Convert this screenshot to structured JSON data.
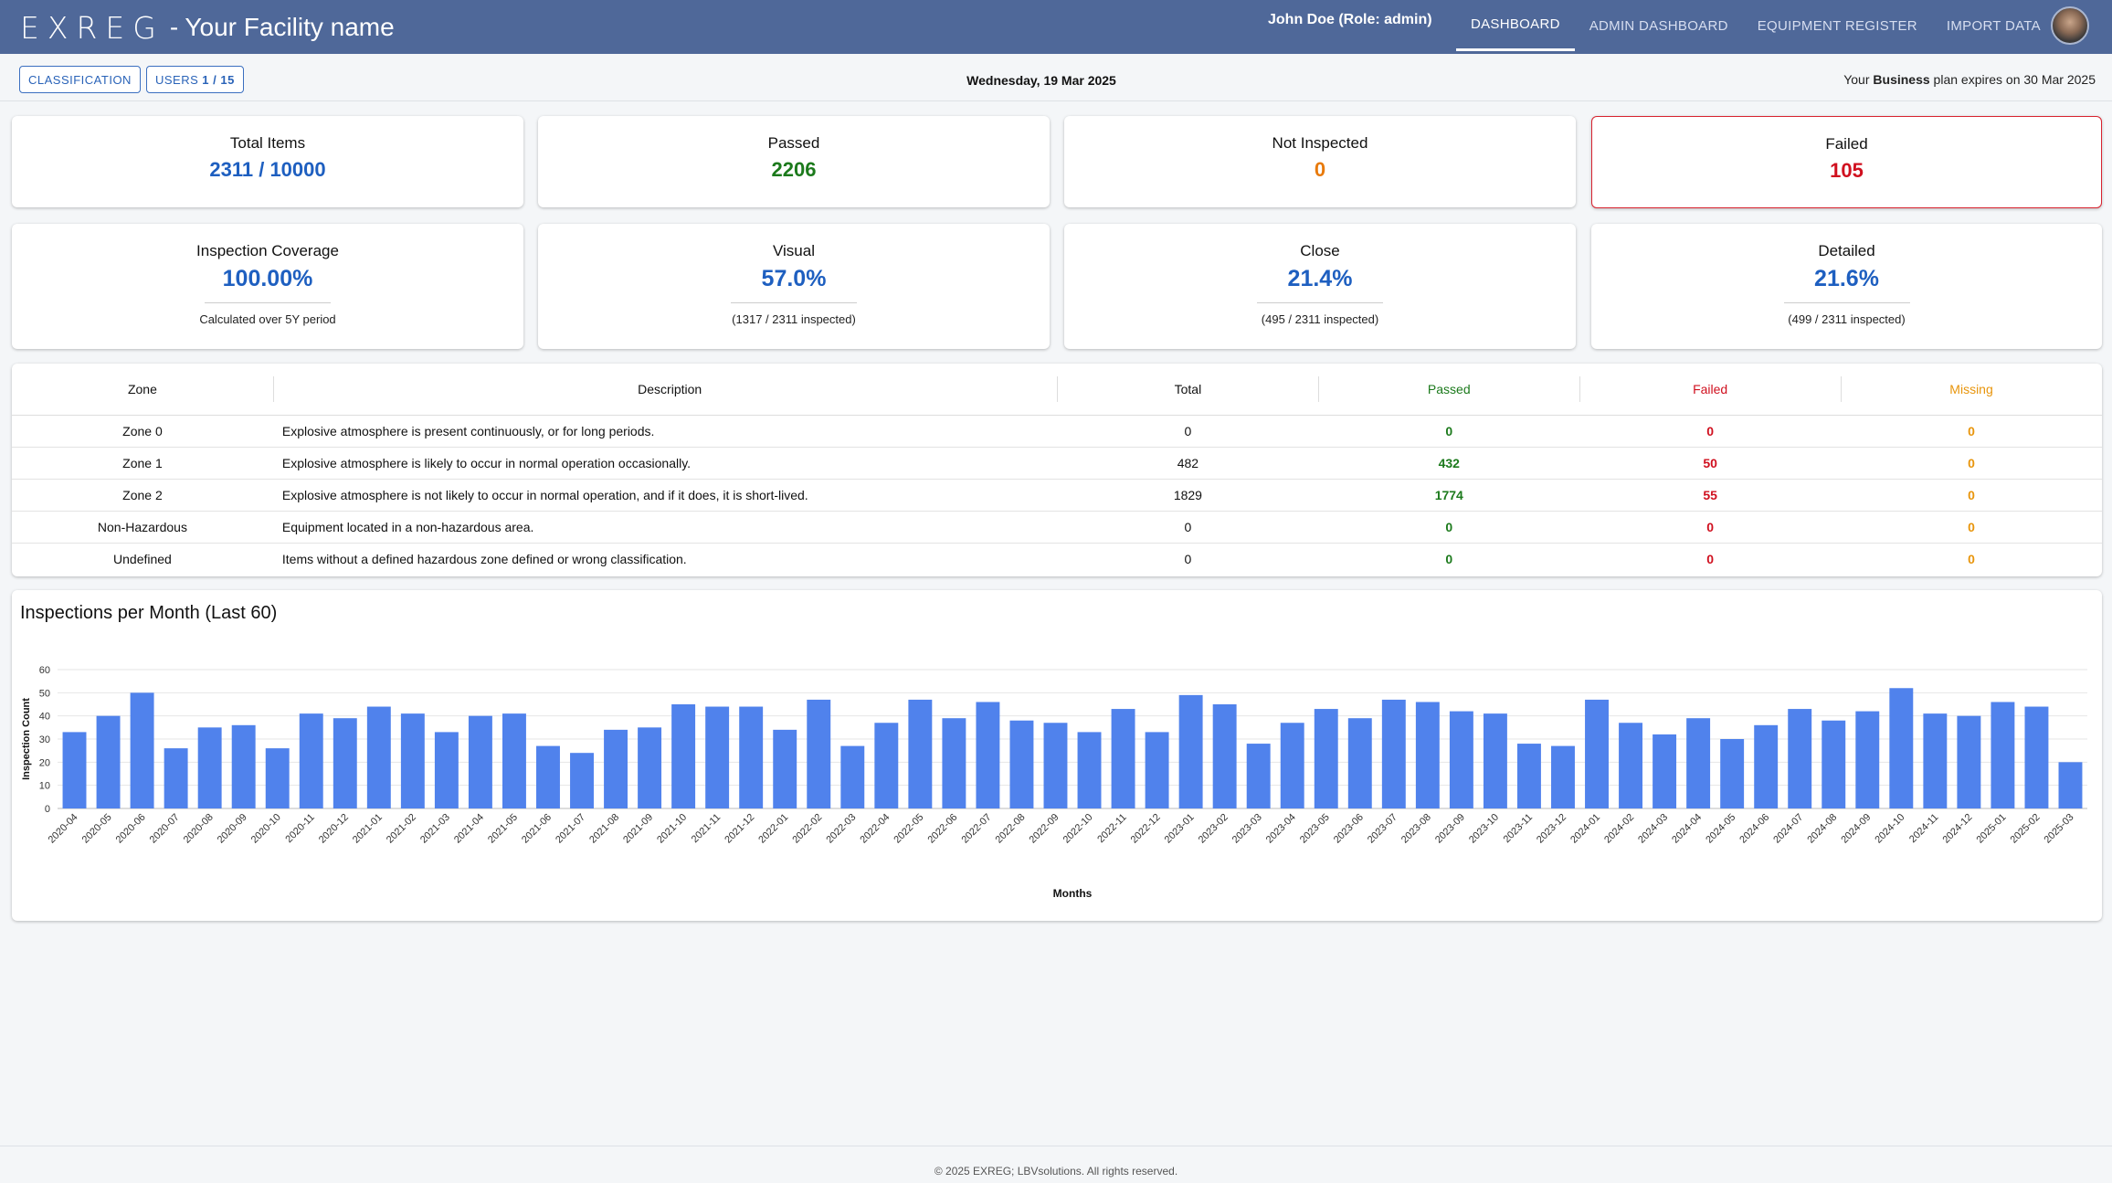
{
  "header": {
    "logo": "EXREG",
    "facility": "- Your Facility name",
    "user": "John Doe (Role: admin)",
    "nav": [
      {
        "label": "DASHBOARD",
        "active": true
      },
      {
        "label": "ADMIN DASHBOARD",
        "active": false
      },
      {
        "label": "EQUIPMENT REGISTER",
        "active": false
      },
      {
        "label": "IMPORT DATA",
        "active": false
      }
    ]
  },
  "subbar": {
    "classification_label": "CLASSIFICATION",
    "users_label": "USERS",
    "users_count": "1 / 15",
    "date": "Wednesday, 19 Mar 2025",
    "plan_prefix": "Your",
    "plan_name": "Business",
    "plan_suffix": "plan expires on 30 Mar 2025"
  },
  "stats": {
    "total": {
      "title": "Total Items",
      "value": "2311 / 10000"
    },
    "passed": {
      "title": "Passed",
      "value": "2206"
    },
    "not_inspected": {
      "title": "Not Inspected",
      "value": "0"
    },
    "failed": {
      "title": "Failed",
      "value": "105"
    }
  },
  "coverage": {
    "coverage": {
      "title": "Inspection Coverage",
      "value": "100.00%",
      "sub": "Calculated over 5Y period"
    },
    "visual": {
      "title": "Visual",
      "value": "57.0%",
      "sub": "(1317 / 2311 inspected)"
    },
    "close": {
      "title": "Close",
      "value": "21.4%",
      "sub": "(495 / 2311 inspected)"
    },
    "detailed": {
      "title": "Detailed",
      "value": "21.6%",
      "sub": "(499 / 2311 inspected)"
    }
  },
  "zones": {
    "headers": {
      "zone": "Zone",
      "description": "Description",
      "total": "Total",
      "passed": "Passed",
      "failed": "Failed",
      "missing": "Missing"
    },
    "rows": [
      {
        "zone": "Zone 0",
        "description": "Explosive atmosphere is present continuously, or for long periods.",
        "total": "0",
        "passed": "0",
        "failed": "0",
        "missing": "0"
      },
      {
        "zone": "Zone 1",
        "description": "Explosive atmosphere is likely to occur in normal operation occasionally.",
        "total": "482",
        "passed": "432",
        "failed": "50",
        "missing": "0"
      },
      {
        "zone": "Zone 2",
        "description": "Explosive atmosphere is not likely to occur in normal operation, and if it does, it is short-lived.",
        "total": "1829",
        "passed": "1774",
        "failed": "55",
        "missing": "0"
      },
      {
        "zone": "Non-Hazardous",
        "description": "Equipment located in a non-hazardous area.",
        "total": "0",
        "passed": "0",
        "failed": "0",
        "missing": "0"
      },
      {
        "zone": "Undefined",
        "description": "Items without a defined hazardous zone defined or wrong classification.",
        "total": "0",
        "passed": "0",
        "failed": "0",
        "missing": "0"
      }
    ]
  },
  "chart_data": {
    "type": "bar",
    "title": "Inspections per Month (Last 60)",
    "xlabel": "Months",
    "ylabel": "Inspection Count",
    "ylim": [
      0,
      60
    ],
    "yticks": [
      0,
      10,
      20,
      30,
      40,
      50,
      60
    ],
    "grid": true,
    "bar_color": "#5082ec",
    "categories": [
      "2020-04",
      "2020-05",
      "2020-06",
      "2020-07",
      "2020-08",
      "2020-09",
      "2020-10",
      "2020-11",
      "2020-12",
      "2021-01",
      "2021-02",
      "2021-03",
      "2021-04",
      "2021-05",
      "2021-06",
      "2021-07",
      "2021-08",
      "2021-09",
      "2021-10",
      "2021-11",
      "2021-12",
      "2022-01",
      "2022-02",
      "2022-03",
      "2022-04",
      "2022-05",
      "2022-06",
      "2022-07",
      "2022-08",
      "2022-09",
      "2022-10",
      "2022-11",
      "2022-12",
      "2023-01",
      "2023-02",
      "2023-03",
      "2023-04",
      "2023-05",
      "2023-06",
      "2023-07",
      "2023-08",
      "2023-09",
      "2023-10",
      "2023-11",
      "2023-12",
      "2024-01",
      "2024-02",
      "2024-03",
      "2024-04",
      "2024-05",
      "2024-06",
      "2024-07",
      "2024-08",
      "2024-09",
      "2024-10",
      "2024-11",
      "2024-12",
      "2025-01",
      "2025-02",
      "2025-03"
    ],
    "values": [
      33,
      40,
      50,
      26,
      35,
      36,
      26,
      41,
      39,
      44,
      41,
      33,
      40,
      41,
      27,
      24,
      34,
      35,
      45,
      44,
      44,
      34,
      47,
      27,
      37,
      47,
      39,
      46,
      38,
      37,
      33,
      43,
      33,
      49,
      45,
      28,
      37,
      43,
      39,
      47,
      46,
      42,
      41,
      28,
      27,
      47,
      37,
      32,
      39,
      30,
      36,
      43,
      38,
      42,
      52,
      41,
      40,
      46,
      44,
      20
    ]
  },
  "footer": {
    "text": "© 2025 EXREG; LBVsolutions. All rights reserved."
  }
}
